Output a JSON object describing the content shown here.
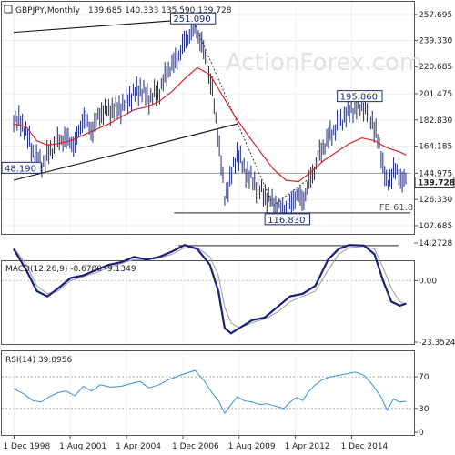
{
  "chart_data": [
    {
      "type": "ohlc",
      "title": "GBPJPY,Monthly",
      "ohlc_readout": "139.685 140.333 135.590 139.728",
      "watermark": "ActionForex.com",
      "x_ticks": [
        "1 Dec 1998",
        "1 Aug 2001",
        "1 Apr 2004",
        "1 Dec 2006",
        "1 Aug 2009",
        "1 Apr 2012",
        "1 Dec 2014"
      ],
      "y_ticks": [
        "257.695",
        "239.330",
        "220.685",
        "201.475",
        "182.830",
        "164.185",
        "144.975",
        "126.330",
        "107.685"
      ],
      "ylim": [
        107.685,
        257.695
      ],
      "current_price": 139.728,
      "current_price_label": "139.728",
      "price_path": [
        [
          1998.9,
          185
        ],
        [
          1999.4,
          178
        ],
        [
          1999.8,
          160
        ],
        [
          2000.2,
          150
        ],
        [
          2000.6,
          160
        ],
        [
          2000.9,
          166
        ],
        [
          2001.3,
          170
        ],
        [
          2001.8,
          165
        ],
        [
          2002.2,
          185
        ],
        [
          2002.6,
          175
        ],
        [
          2003.0,
          188
        ],
        [
          2003.5,
          190
        ],
        [
          2004.0,
          192
        ],
        [
          2004.5,
          200
        ],
        [
          2004.9,
          205
        ],
        [
          2005.3,
          198
        ],
        [
          2005.8,
          203
        ],
        [
          2006.2,
          218
        ],
        [
          2006.6,
          225
        ],
        [
          2007.0,
          238
        ],
        [
          2007.5,
          250
        ],
        [
          2007.9,
          232
        ],
        [
          2008.3,
          205
        ],
        [
          2008.6,
          170
        ],
        [
          2008.9,
          128
        ],
        [
          2009.2,
          142
        ],
        [
          2009.5,
          160
        ],
        [
          2009.8,
          148
        ],
        [
          2010.2,
          140
        ],
        [
          2010.6,
          132
        ],
        [
          2010.9,
          128
        ],
        [
          2011.3,
          122
        ],
        [
          2011.7,
          118
        ],
        [
          2012.0,
          122
        ],
        [
          2012.3,
          130
        ],
        [
          2012.6,
          125
        ],
        [
          2012.9,
          138
        ],
        [
          2013.2,
          150
        ],
        [
          2013.5,
          162
        ],
        [
          2013.9,
          172
        ],
        [
          2014.3,
          180
        ],
        [
          2014.7,
          188
        ],
        [
          2015.1,
          192
        ],
        [
          2015.5,
          193
        ],
        [
          2015.9,
          182
        ],
        [
          2016.3,
          160
        ],
        [
          2016.6,
          135
        ],
        [
          2016.9,
          148
        ],
        [
          2017.2,
          142
        ],
        [
          2017.5,
          139.7
        ]
      ],
      "ma_path": [
        [
          1998.9,
          180
        ],
        [
          1999.5,
          178
        ],
        [
          2000.0,
          168
        ],
        [
          2000.5,
          165
        ],
        [
          2001.0,
          166
        ],
        [
          2001.6,
          168
        ],
        [
          2002.2,
          172
        ],
        [
          2002.8,
          176
        ],
        [
          2003.4,
          180
        ],
        [
          2004.0,
          185
        ],
        [
          2004.6,
          190
        ],
        [
          2005.2,
          192
        ],
        [
          2005.8,
          196
        ],
        [
          2006.4,
          203
        ],
        [
          2007.0,
          212
        ],
        [
          2007.6,
          220
        ],
        [
          2008.2,
          215
        ],
        [
          2008.8,
          200
        ],
        [
          2009.4,
          185
        ],
        [
          2010.0,
          172
        ],
        [
          2010.6,
          160
        ],
        [
          2011.2,
          148
        ],
        [
          2011.8,
          140
        ],
        [
          2012.4,
          139
        ],
        [
          2013.0,
          146
        ],
        [
          2013.6,
          154
        ],
        [
          2014.2,
          160
        ],
        [
          2014.8,
          166
        ],
        [
          2015.4,
          170
        ],
        [
          2016.0,
          168
        ],
        [
          2016.6,
          163
        ],
        [
          2017.2,
          160
        ],
        [
          2017.5,
          158
        ]
      ],
      "trendlines": [
        {
          "from": [
            1998.9,
            245
          ],
          "to": [
            2008.0,
            255
          ]
        },
        {
          "from": [
            1998.9,
            140
          ],
          "to": [
            2009.5,
            180
          ]
        }
      ],
      "hlines": [
        {
          "value": 144.975,
          "from": 1998.9,
          "to": 2017.7,
          "color": "#9a9a9a"
        },
        {
          "value": 116.83,
          "from": 2006.5,
          "to": 2017.7,
          "color": "#222222"
        }
      ],
      "dotted_lines": [
        {
          "from": [
            2007.5,
            250
          ],
          "to": [
            2011.2,
            122
          ]
        },
        {
          "from": [
            2011.2,
            122
          ],
          "to": [
            2012.8,
            140
          ]
        }
      ],
      "annotations": [
        {
          "text": "251.090",
          "x": 2007.4,
          "y": 251.09,
          "boxed": true
        },
        {
          "text": "48.190",
          "x": 1998.9,
          "y": 144.975,
          "boxed": true
        },
        {
          "text": "116.830",
          "x": 2011.7,
          "y": 116.83,
          "boxed": true
        },
        {
          "text": "195.860",
          "x": 2015.3,
          "y": 195.86,
          "boxed": true
        },
        {
          "text": "FE 61.8",
          "x": 2017.3,
          "y": 116.83,
          "boxed": false
        }
      ],
      "colors": {
        "price": "#1f2a78",
        "ma": "#d8242b"
      }
    },
    {
      "type": "line",
      "title": "MACD(12,26,9) -8.6780 -9.1349",
      "y_ticks": [
        "14.2728",
        "0.00",
        "-23.3524"
      ],
      "ylim": [
        -23.3524,
        14.2728
      ],
      "zero_line": 0,
      "reference_line": 13.3,
      "series": [
        {
          "color": "#1a1f7a",
          "points": [
            [
              1998.9,
              12
            ],
            [
              1999.5,
              4
            ],
            [
              2000.0,
              -4
            ],
            [
              2000.5,
              -6
            ],
            [
              2001.0,
              -3
            ],
            [
              2001.6,
              1
            ],
            [
              2002.2,
              2
            ],
            [
              2002.8,
              4
            ],
            [
              2003.4,
              6
            ],
            [
              2004.0,
              7
            ],
            [
              2004.6,
              9
            ],
            [
              2005.2,
              8
            ],
            [
              2005.8,
              9
            ],
            [
              2006.4,
              11
            ],
            [
              2007.0,
              13.5
            ],
            [
              2007.6,
              12
            ],
            [
              2008.2,
              6
            ],
            [
              2008.6,
              -4
            ],
            [
              2008.9,
              -18
            ],
            [
              2009.2,
              -20
            ],
            [
              2009.6,
              -18
            ],
            [
              2010.2,
              -15
            ],
            [
              2010.8,
              -14
            ],
            [
              2011.4,
              -10
            ],
            [
              2012.0,
              -6
            ],
            [
              2012.6,
              -5
            ],
            [
              2013.2,
              -2
            ],
            [
              2013.8,
              8
            ],
            [
              2014.3,
              12
            ],
            [
              2014.8,
              13.5
            ],
            [
              2015.5,
              13.3
            ],
            [
              2016.0,
              10
            ],
            [
              2016.4,
              0
            ],
            [
              2016.8,
              -8
            ],
            [
              2017.2,
              -9.5
            ],
            [
              2017.5,
              -8.7
            ]
          ]
        },
        {
          "color": "#9a9a9a",
          "points": [
            [
              1998.9,
              12.5
            ],
            [
              1999.5,
              6
            ],
            [
              2000.0,
              -2
            ],
            [
              2000.5,
              -5
            ],
            [
              2001.0,
              -4
            ],
            [
              2001.6,
              0
            ],
            [
              2002.2,
              1.5
            ],
            [
              2002.8,
              3
            ],
            [
              2003.4,
              5
            ],
            [
              2004.0,
              6.5
            ],
            [
              2004.6,
              8
            ],
            [
              2005.2,
              8
            ],
            [
              2005.8,
              8.5
            ],
            [
              2006.4,
              10
            ],
            [
              2007.0,
              12.5
            ],
            [
              2007.6,
              12.5
            ],
            [
              2008.2,
              9
            ],
            [
              2008.6,
              2
            ],
            [
              2008.9,
              -10
            ],
            [
              2009.2,
              -16
            ],
            [
              2009.6,
              -18
            ],
            [
              2010.2,
              -16
            ],
            [
              2010.8,
              -14.5
            ],
            [
              2011.4,
              -12
            ],
            [
              2012.0,
              -8
            ],
            [
              2012.6,
              -6
            ],
            [
              2013.2,
              -4
            ],
            [
              2013.8,
              4
            ],
            [
              2014.3,
              10
            ],
            [
              2014.8,
              12.5
            ],
            [
              2015.5,
              13
            ],
            [
              2016.0,
              12
            ],
            [
              2016.4,
              5
            ],
            [
              2016.8,
              -3
            ],
            [
              2017.2,
              -8
            ],
            [
              2017.5,
              -9.1
            ]
          ]
        }
      ]
    },
    {
      "type": "line",
      "title": "RSI(14) 39.0956",
      "y_ticks": [
        "70",
        "30",
        "0"
      ],
      "ylim": [
        0,
        100
      ],
      "reference_lines": [
        70,
        30
      ],
      "series": [
        {
          "color": "#3a8fd6",
          "points": [
            [
              1998.9,
              55
            ],
            [
              1999.4,
              48
            ],
            [
              1999.8,
              40
            ],
            [
              2000.2,
              38
            ],
            [
              2000.6,
              45
            ],
            [
              2001.0,
              50
            ],
            [
              2001.4,
              52
            ],
            [
              2001.8,
              46
            ],
            [
              2002.2,
              58
            ],
            [
              2002.6,
              52
            ],
            [
              2003.0,
              60
            ],
            [
              2003.5,
              57
            ],
            [
              2004.0,
              58
            ],
            [
              2004.5,
              62
            ],
            [
              2004.9,
              64
            ],
            [
              2005.3,
              56
            ],
            [
              2005.8,
              60
            ],
            [
              2006.2,
              66
            ],
            [
              2006.6,
              70
            ],
            [
              2007.0,
              74
            ],
            [
              2007.5,
              78
            ],
            [
              2007.9,
              66
            ],
            [
              2008.3,
              50
            ],
            [
              2008.6,
              40
            ],
            [
              2008.9,
              24
            ],
            [
              2009.2,
              35
            ],
            [
              2009.5,
              45
            ],
            [
              2009.8,
              40
            ],
            [
              2010.2,
              38
            ],
            [
              2010.6,
              35
            ],
            [
              2010.9,
              36
            ],
            [
              2011.3,
              33
            ],
            [
              2011.7,
              30
            ],
            [
              2012.0,
              38
            ],
            [
              2012.3,
              44
            ],
            [
              2012.6,
              40
            ],
            [
              2012.9,
              52
            ],
            [
              2013.2,
              60
            ],
            [
              2013.5,
              66
            ],
            [
              2013.9,
              70
            ],
            [
              2014.3,
              72
            ],
            [
              2014.7,
              74
            ],
            [
              2015.1,
              76
            ],
            [
              2015.5,
              72
            ],
            [
              2015.9,
              60
            ],
            [
              2016.3,
              45
            ],
            [
              2016.6,
              28
            ],
            [
              2016.9,
              42
            ],
            [
              2017.2,
              38
            ],
            [
              2017.5,
              39.1
            ]
          ]
        }
      ]
    }
  ]
}
